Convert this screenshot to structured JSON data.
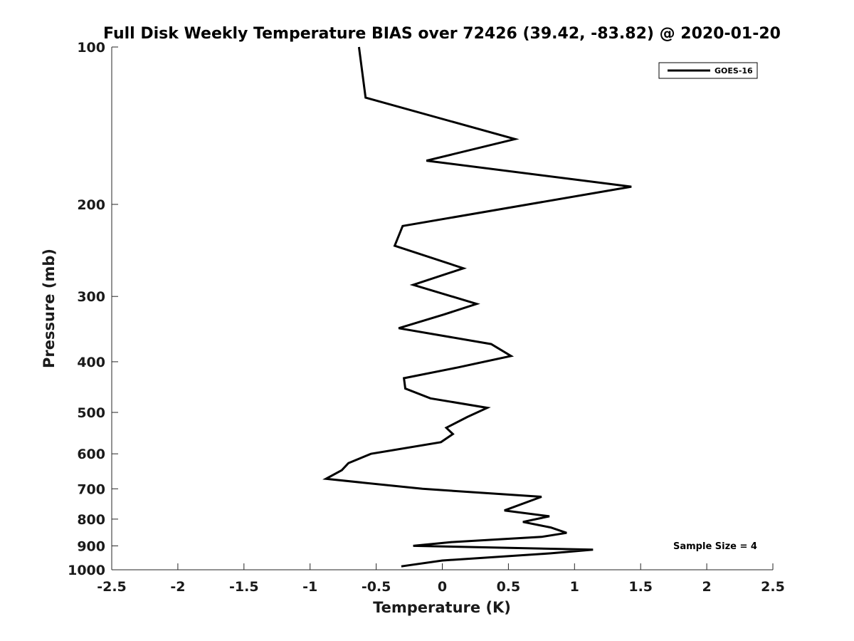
{
  "chart_data": {
    "type": "line",
    "title": "Full Disk Weekly Temperature BIAS over 72426 (39.42, -83.82) @ 2020-01-20",
    "xlabel": "Temperature (K)",
    "ylabel": "Pressure (mb)",
    "xlim": [
      -2.5,
      2.5
    ],
    "ylim": [
      100,
      1000
    ],
    "yscale": "log",
    "y_reversed": true,
    "grid": false,
    "legend_position": "top-right",
    "x_ticks": [
      -2.5,
      -2,
      -1.5,
      -1,
      -0.5,
      0,
      0.5,
      1,
      1.5,
      2,
      2.5
    ],
    "x_tick_labels": [
      "-2.5",
      "-2",
      "-1.5",
      "-1",
      "-0.5",
      "0",
      "0.5",
      "1",
      "1.5",
      "2",
      "2.5"
    ],
    "y_ticks": [
      100,
      200,
      300,
      400,
      500,
      600,
      700,
      800,
      900,
      1000
    ],
    "y_tick_labels": [
      "100",
      "200",
      "300",
      "400",
      "500",
      "600",
      "700",
      "800",
      "900",
      "1000"
    ],
    "series": [
      {
        "name": "GOES-16",
        "color": "#000000",
        "points": [
          {
            "x": -0.63,
            "p": 100
          },
          {
            "x": -0.58,
            "p": 125
          },
          {
            "x": 0.55,
            "p": 150
          },
          {
            "x": -0.12,
            "p": 165
          },
          {
            "x": 1.43,
            "p": 185
          },
          {
            "x": 0.65,
            "p": 200
          },
          {
            "x": -0.3,
            "p": 220
          },
          {
            "x": -0.36,
            "p": 240
          },
          {
            "x": 0.16,
            "p": 265
          },
          {
            "x": -0.22,
            "p": 285
          },
          {
            "x": 0.26,
            "p": 310
          },
          {
            "x": 0.01,
            "p": 325
          },
          {
            "x": -0.33,
            "p": 345
          },
          {
            "x": 0.37,
            "p": 370
          },
          {
            "x": 0.52,
            "p": 390
          },
          {
            "x": 0.12,
            "p": 410
          },
          {
            "x": -0.29,
            "p": 430
          },
          {
            "x": -0.28,
            "p": 450
          },
          {
            "x": -0.09,
            "p": 470
          },
          {
            "x": 0.34,
            "p": 490
          },
          {
            "x": 0.19,
            "p": 510
          },
          {
            "x": 0.03,
            "p": 535
          },
          {
            "x": 0.08,
            "p": 550
          },
          {
            "x": -0.01,
            "p": 570
          },
          {
            "x": -0.54,
            "p": 600
          },
          {
            "x": -0.71,
            "p": 625
          },
          {
            "x": -0.76,
            "p": 645
          },
          {
            "x": -0.88,
            "p": 670
          },
          {
            "x": -0.15,
            "p": 700
          },
          {
            "x": 0.75,
            "p": 725
          },
          {
            "x": 0.47,
            "p": 770
          },
          {
            "x": 0.81,
            "p": 790
          },
          {
            "x": 0.61,
            "p": 810
          },
          {
            "x": 0.82,
            "p": 830
          },
          {
            "x": 0.94,
            "p": 850
          },
          {
            "x": 0.75,
            "p": 865
          },
          {
            "x": 0.07,
            "p": 885
          },
          {
            "x": -0.22,
            "p": 900
          },
          {
            "x": 1.14,
            "p": 915
          },
          {
            "x": 0.82,
            "p": 930
          },
          {
            "x": 0.0,
            "p": 960
          },
          {
            "x": -0.31,
            "p": 985
          }
        ]
      }
    ],
    "annotations": [
      {
        "text": "Sample Size = 4",
        "position": "bottom-right"
      }
    ]
  }
}
